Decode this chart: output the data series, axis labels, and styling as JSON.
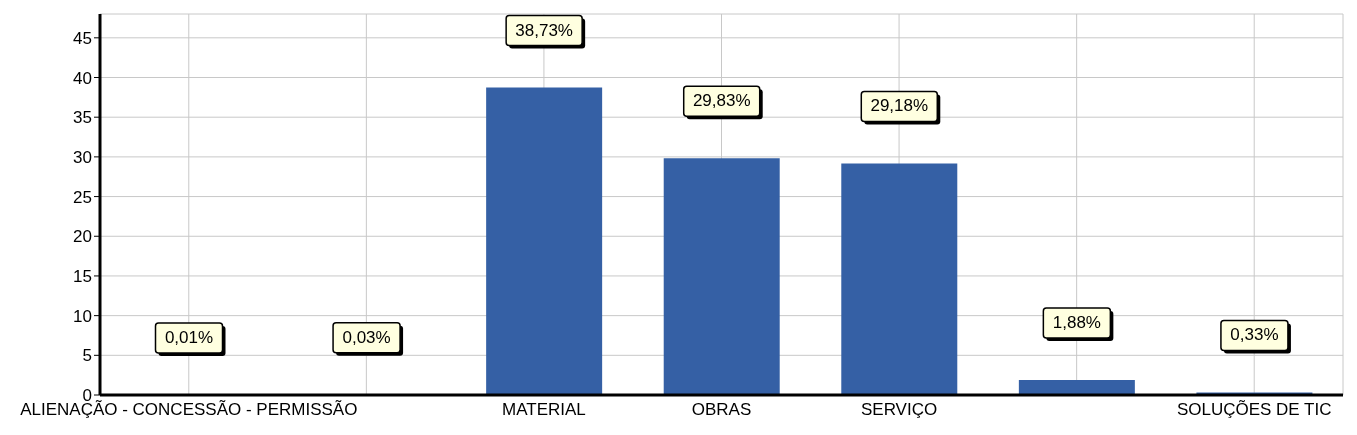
{
  "chart_data": {
    "type": "bar",
    "categories": [
      "ALIENAÇÃO - CONCESSÃO - PERMISSÃO",
      null,
      "MATERIAL",
      "OBRAS",
      "SERVIÇO",
      null,
      "SOLUÇÕES DE TIC"
    ],
    "values": [
      0.01,
      0.03,
      38.73,
      29.83,
      29.18,
      1.88,
      0.33
    ],
    "value_labels": [
      "0,01%",
      "0,03%",
      "38,73%",
      "29,83%",
      "29,18%",
      "1,88%",
      "0,33%"
    ],
    "color": "#3560a5",
    "ylim": [
      0,
      48
    ],
    "yticks": [
      0,
      5,
      10,
      15,
      20,
      25,
      30,
      35,
      40,
      45
    ],
    "grid": true
  }
}
